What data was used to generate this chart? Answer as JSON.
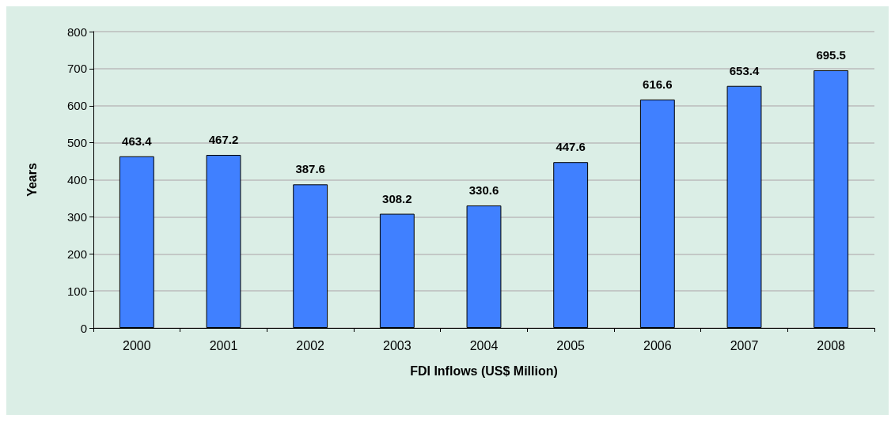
{
  "chart_data": {
    "type": "bar",
    "xlabel": "FDI Inflows (US$ Million)",
    "ylabel": "Years",
    "categories": [
      "2000",
      "2001",
      "2002",
      "2003",
      "2004",
      "2005",
      "2006",
      "2007",
      "2008"
    ],
    "values": [
      463.4,
      467.2,
      387.6,
      308.2,
      330.6,
      447.6,
      616.6,
      653.4,
      695.5
    ],
    "color": "#4080ff",
    "ylim": [
      0,
      800
    ],
    "yticks": [
      0,
      100,
      200,
      300,
      400,
      500,
      600,
      700,
      800
    ],
    "grid": "y",
    "data_labels": true
  }
}
